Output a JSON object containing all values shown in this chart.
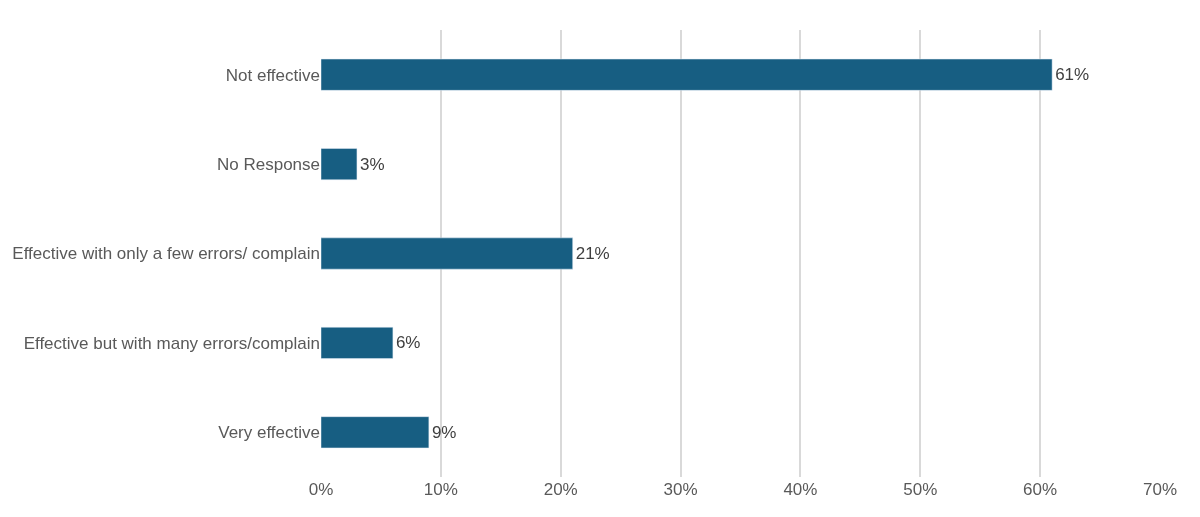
{
  "chart_data": {
    "type": "bar",
    "orientation": "horizontal",
    "categories": [
      "Not effective",
      "No Response",
      "Effective with only a few errors/ complain",
      "Effective but with many errors/complain",
      "Very effective"
    ],
    "values": [
      61,
      3,
      21,
      6,
      9
    ],
    "value_labels": [
      "61%",
      "3%",
      "21%",
      "6%",
      "9%"
    ],
    "color": "#175e82",
    "xlim": [
      0,
      70
    ],
    "xticks": [
      {
        "value": 0,
        "label": "0%"
      },
      {
        "value": 10,
        "label": "10%"
      },
      {
        "value": 20,
        "label": "20%"
      },
      {
        "value": 30,
        "label": "30%"
      },
      {
        "value": 40,
        "label": "40%"
      },
      {
        "value": 50,
        "label": "50%"
      },
      {
        "value": 60,
        "label": "60%"
      },
      {
        "value": 70,
        "label": "70%"
      }
    ],
    "grid": "x",
    "legend": false
  }
}
